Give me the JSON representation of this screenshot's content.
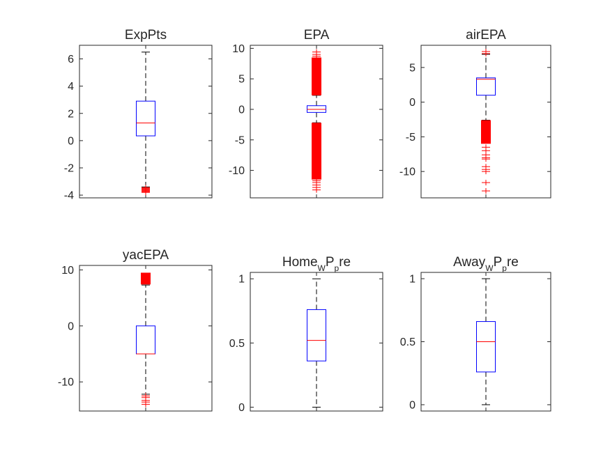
{
  "colors": {
    "box": "#0000ff",
    "median": "#ff0000",
    "outlier": "#ff0000",
    "whisker": "#000000",
    "axis": "#262626"
  },
  "chart_data": [
    {
      "type": "boxplot",
      "title": "ExpPts",
      "title_parts": [],
      "ylim": [
        -4.2,
        7
      ],
      "yticks": [
        -4,
        -2,
        0,
        2,
        4,
        6
      ],
      "ytick_labels": [
        "-4",
        "-2",
        "0",
        "2",
        "4",
        "6"
      ],
      "box": {
        "q1": 0.35,
        "median": 1.3,
        "q3": 2.9,
        "whisker_low": -3.4,
        "whisker_high": 6.5
      },
      "outliers": [
        -3.45,
        -3.5,
        -3.55,
        -3.6,
        -3.65,
        -3.7,
        -3.75,
        -3.8
      ],
      "outlier_bands": []
    },
    {
      "type": "boxplot",
      "title": "EPA",
      "title_parts": [],
      "ylim": [
        -14.5,
        10.5
      ],
      "yticks": [
        -10,
        -5,
        0,
        5,
        10
      ],
      "ytick_labels": [
        "-10",
        "-5",
        "0",
        "5",
        "10"
      ],
      "box": {
        "q1": -0.5,
        "median": 0.0,
        "q3": 0.6,
        "whisker_low": -2.2,
        "whisker_high": 2.3
      },
      "outliers": [
        9.4,
        9.0,
        8.7,
        -11.7,
        -12.0,
        -12.4,
        -12.8,
        -13.2
      ],
      "outlier_bands": [
        [
          2.3,
          8.5
        ],
        [
          -11.5,
          -2.2
        ]
      ]
    },
    {
      "type": "boxplot",
      "title": "airEPA",
      "title_parts": [],
      "ylim": [
        -13.8,
        8.2
      ],
      "yticks": [
        -10,
        -5,
        0,
        5
      ],
      "ytick_labels": [
        "-10",
        "-5",
        "0",
        "5"
      ],
      "box": {
        "q1": 1.0,
        "median": 3.3,
        "q3": 3.5,
        "whisker_low": -2.6,
        "whisker_high": 6.9
      },
      "outliers": [
        7.0,
        7.3,
        -6.5,
        -7.0,
        -7.6,
        -8.0,
        -8.2,
        -9.3,
        -9.7,
        -10.0,
        -11.6,
        -12.8
      ],
      "outlier_bands": [
        [
          -6.0,
          -2.6
        ]
      ]
    },
    {
      "type": "boxplot",
      "title": "yacEPA",
      "title_parts": [],
      "ylim": [
        -15.2,
        10.8
      ],
      "yticks": [
        -10,
        0,
        10
      ],
      "ytick_labels": [
        "-10",
        "0",
        "10"
      ],
      "box": {
        "q1": -5.0,
        "median": -5.0,
        "q3": 0.0,
        "whisker_low": -12.2,
        "whisker_high": 7.3
      },
      "outliers": [
        -12.5,
        -12.8,
        -13.3,
        -13.6,
        -14.0
      ],
      "outlier_bands": [
        [
          7.4,
          9.5
        ]
      ]
    },
    {
      "type": "boxplot",
      "title": "",
      "title_parts": [
        {
          "text": "Home",
          "pos": "base"
        },
        {
          "text": "W",
          "pos": "sub"
        },
        {
          "text": "P",
          "pos": "base"
        },
        {
          "text": "p",
          "pos": "sub"
        },
        {
          "text": "re",
          "pos": "base"
        }
      ],
      "ylim": [
        -0.03,
        1.05
      ],
      "yticks": [
        0,
        0.5,
        1
      ],
      "ytick_labels": [
        "0",
        "0.5",
        "1"
      ],
      "box": {
        "q1": 0.36,
        "median": 0.52,
        "q3": 0.76,
        "whisker_low": 0.0,
        "whisker_high": 1.0
      },
      "outliers": [],
      "outlier_bands": []
    },
    {
      "type": "boxplot",
      "title": "",
      "title_parts": [
        {
          "text": "Away",
          "pos": "base"
        },
        {
          "text": "W",
          "pos": "sub"
        },
        {
          "text": "P",
          "pos": "base"
        },
        {
          "text": "p",
          "pos": "sub"
        },
        {
          "text": "re",
          "pos": "base"
        }
      ],
      "ylim": [
        -0.05,
        1.05
      ],
      "yticks": [
        0,
        0.5,
        1
      ],
      "ytick_labels": [
        "0",
        "0.5",
        "1"
      ],
      "box": {
        "q1": 0.26,
        "median": 0.5,
        "q3": 0.66,
        "whisker_low": 0.0,
        "whisker_high": 1.0
      },
      "outliers": [],
      "outlier_bands": []
    }
  ]
}
